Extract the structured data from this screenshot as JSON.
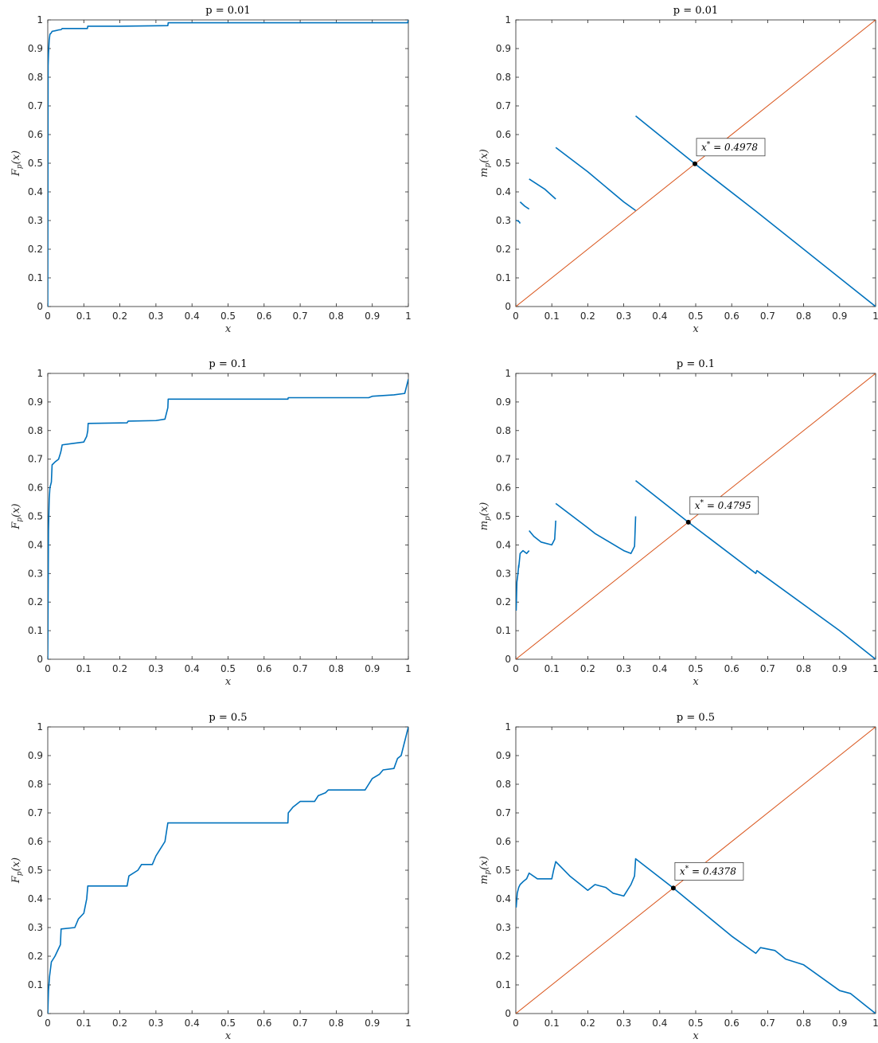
{
  "colors": {
    "cdf": "#0072BD",
    "map": "#0072BD",
    "diagonal": "#D95319",
    "point": "#000000",
    "axis": "#262626"
  },
  "chart_data": [
    {
      "type": "line",
      "panel": "cdf-p001",
      "title": "p = 0.01",
      "xlabel": "x",
      "ylabel": "F_p(x)",
      "xlim": [
        0,
        1
      ],
      "ylim": [
        0,
        1
      ],
      "xticks": [
        "0",
        "0.1",
        "0.2",
        "0.3",
        "0.4",
        "0.5",
        "0.6",
        "0.7",
        "0.8",
        "0.9",
        "1"
      ],
      "yticks": [
        "0",
        "0.1",
        "0.2",
        "0.3",
        "0.4",
        "0.5",
        "0.6",
        "0.7",
        "0.8",
        "0.9",
        "1"
      ],
      "grid": false,
      "series": [
        {
          "color": "cdf",
          "x": [
            0,
            0.001,
            0.002,
            0.004,
            0.006,
            0.01,
            0.012,
            0.02,
            0.03,
            0.037,
            0.04,
            0.11,
            0.111,
            0.2,
            0.333,
            0.334,
            0.6,
            0.95,
            0.998,
            1.0
          ],
          "y": [
            0,
            0.84,
            0.88,
            0.93,
            0.95,
            0.955,
            0.96,
            0.962,
            0.965,
            0.966,
            0.97,
            0.97,
            0.978,
            0.978,
            0.98,
            0.99,
            0.99,
            0.99,
            0.99,
            1.0
          ]
        }
      ]
    },
    {
      "type": "line",
      "panel": "map-p001",
      "title": "p = 0.01",
      "xlabel": "x",
      "ylabel": "m_p(x)",
      "xlim": [
        0,
        1
      ],
      "ylim": [
        0,
        1
      ],
      "xticks": [
        "0",
        "0.1",
        "0.2",
        "0.3",
        "0.4",
        "0.5",
        "0.6",
        "0.7",
        "0.8",
        "0.9",
        "1"
      ],
      "yticks": [
        "0",
        "0.1",
        "0.2",
        "0.3",
        "0.4",
        "0.5",
        "0.6",
        "0.7",
        "0.8",
        "0.9",
        "1"
      ],
      "grid": false,
      "series": [
        {
          "color": "diagonal",
          "x": [
            0,
            1
          ],
          "y": [
            0,
            1
          ]
        },
        {
          "color": "map",
          "x": [
            0.001,
            0.004,
            0.01,
            0.012
          ],
          "y": [
            0.3,
            0.3,
            0.295,
            0.29
          ]
        },
        {
          "color": "map",
          "x": [
            0.012,
            0.025,
            0.037
          ],
          "y": [
            0.365,
            0.35,
            0.34
          ]
        },
        {
          "color": "map",
          "x": [
            0.037,
            0.08,
            0.111
          ],
          "y": [
            0.445,
            0.41,
            0.375
          ]
        },
        {
          "color": "map",
          "x": [
            0.111,
            0.2,
            0.3,
            0.333
          ],
          "y": [
            0.555,
            0.47,
            0.365,
            0.335
          ]
        },
        {
          "color": "map",
          "x": [
            0.333,
            0.4978,
            0.667,
            1.0
          ],
          "y": [
            0.665,
            0.4978,
            0.333,
            0.0
          ]
        }
      ],
      "points": [
        {
          "x": 0.4978,
          "y": 0.4978
        }
      ],
      "annotation": {
        "text": "x* = 0.4978",
        "x": 0.4978,
        "y": 0.4978
      }
    },
    {
      "type": "line",
      "panel": "cdf-p01",
      "title": "p = 0.1",
      "xlabel": "x",
      "ylabel": "F_p(x)",
      "xlim": [
        0,
        1
      ],
      "ylim": [
        0,
        1
      ],
      "xticks": [
        "0",
        "0.1",
        "0.2",
        "0.3",
        "0.4",
        "0.5",
        "0.6",
        "0.7",
        "0.8",
        "0.9",
        "1"
      ],
      "yticks": [
        "0",
        "0.1",
        "0.2",
        "0.3",
        "0.4",
        "0.5",
        "0.6",
        "0.7",
        "0.8",
        "0.9",
        "1"
      ],
      "grid": false,
      "series": [
        {
          "color": "cdf",
          "x": [
            0,
            0.001,
            0.002,
            0.004,
            0.006,
            0.01,
            0.012,
            0.02,
            0.03,
            0.035,
            0.037,
            0.04,
            0.07,
            0.1,
            0.108,
            0.111,
            0.112,
            0.22,
            0.223,
            0.3,
            0.325,
            0.333,
            0.334,
            0.666,
            0.667,
            0.89,
            0.9,
            0.96,
            0.99,
            1.0
          ],
          "y": [
            0,
            0.22,
            0.45,
            0.56,
            0.6,
            0.62,
            0.68,
            0.69,
            0.7,
            0.72,
            0.73,
            0.75,
            0.755,
            0.76,
            0.78,
            0.8,
            0.825,
            0.827,
            0.833,
            0.835,
            0.84,
            0.88,
            0.91,
            0.91,
            0.915,
            0.915,
            0.92,
            0.925,
            0.93,
            0.98
          ]
        }
      ]
    },
    {
      "type": "line",
      "panel": "map-p01",
      "title": "p = 0.1",
      "xlabel": "x",
      "ylabel": "m_p(x)",
      "xlim": [
        0,
        1
      ],
      "ylim": [
        0,
        1
      ],
      "xticks": [
        "0",
        "0.1",
        "0.2",
        "0.3",
        "0.4",
        "0.5",
        "0.6",
        "0.7",
        "0.8",
        "0.9",
        "1"
      ],
      "yticks": [
        "0",
        "0.1",
        "0.2",
        "0.3",
        "0.4",
        "0.5",
        "0.6",
        "0.7",
        "0.8",
        "0.9",
        "1"
      ],
      "grid": false,
      "series": [
        {
          "color": "diagonal",
          "x": [
            0,
            1
          ],
          "y": [
            0,
            1
          ]
        },
        {
          "color": "map",
          "x": [
            0.001,
            0.003,
            0.006,
            0.008
          ],
          "y": [
            0.17,
            0.27,
            0.3,
            0.33
          ]
        },
        {
          "color": "map",
          "x": [
            0.008,
            0.012,
            0.02,
            0.03,
            0.037
          ],
          "y": [
            0.32,
            0.37,
            0.38,
            0.37,
            0.38
          ]
        },
        {
          "color": "map",
          "x": [
            0.037,
            0.05,
            0.07,
            0.1,
            0.108,
            0.111
          ],
          "y": [
            0.45,
            0.43,
            0.41,
            0.4,
            0.42,
            0.485
          ]
        },
        {
          "color": "map",
          "x": [
            0.111,
            0.2,
            0.22,
            0.3,
            0.32,
            0.33,
            0.333
          ],
          "y": [
            0.545,
            0.46,
            0.44,
            0.38,
            0.37,
            0.395,
            0.5
          ]
        },
        {
          "color": "map",
          "x": [
            0.333,
            0.4795,
            0.667,
            0.67,
            0.9,
            1.0
          ],
          "y": [
            0.625,
            0.4795,
            0.3,
            0.31,
            0.1,
            0.0
          ]
        }
      ],
      "points": [
        {
          "x": 0.4795,
          "y": 0.4795
        }
      ],
      "annotation": {
        "text": "x* = 0.4795",
        "x": 0.4795,
        "y": 0.4795
      }
    },
    {
      "type": "line",
      "panel": "cdf-p05",
      "title": "p = 0.5",
      "xlabel": "x",
      "ylabel": "F_p(x)",
      "xlim": [
        0,
        1
      ],
      "ylim": [
        0,
        1
      ],
      "xticks": [
        "0",
        "0.1",
        "0.2",
        "0.3",
        "0.4",
        "0.5",
        "0.6",
        "0.7",
        "0.8",
        "0.9",
        "1"
      ],
      "yticks": [
        "0",
        "0.1",
        "0.2",
        "0.3",
        "0.4",
        "0.5",
        "0.6",
        "0.7",
        "0.8",
        "0.9",
        "1"
      ],
      "grid": false,
      "series": [
        {
          "color": "cdf",
          "x": [
            0,
            0.002,
            0.005,
            0.01,
            0.02,
            0.035,
            0.037,
            0.075,
            0.085,
            0.1,
            0.108,
            0.111,
            0.22,
            0.225,
            0.25,
            0.26,
            0.29,
            0.3,
            0.31,
            0.325,
            0.333,
            0.666,
            0.667,
            0.68,
            0.7,
            0.74,
            0.75,
            0.77,
            0.778,
            0.88,
            0.89,
            0.9,
            0.92,
            0.93,
            0.96,
            0.97,
            0.98,
            0.99,
            1.0
          ],
          "y": [
            0,
            0.08,
            0.13,
            0.18,
            0.2,
            0.24,
            0.295,
            0.3,
            0.33,
            0.35,
            0.4,
            0.445,
            0.445,
            0.48,
            0.5,
            0.52,
            0.52,
            0.55,
            0.57,
            0.6,
            0.665,
            0.665,
            0.7,
            0.72,
            0.74,
            0.74,
            0.76,
            0.77,
            0.78,
            0.78,
            0.8,
            0.82,
            0.835,
            0.85,
            0.855,
            0.89,
            0.9,
            0.95,
            1.0
          ]
        }
      ]
    },
    {
      "type": "line",
      "panel": "map-p05",
      "title": "p = 0.5",
      "xlabel": "x",
      "ylabel": "m_p(x)",
      "xlim": [
        0,
        1
      ],
      "ylim": [
        0,
        1
      ],
      "xticks": [
        "0",
        "0.1",
        "0.2",
        "0.3",
        "0.4",
        "0.5",
        "0.6",
        "0.7",
        "0.8",
        "0.9",
        "1"
      ],
      "yticks": [
        "0",
        "0.1",
        "0.2",
        "0.3",
        "0.4",
        "0.5",
        "0.6",
        "0.7",
        "0.8",
        "0.9",
        "1"
      ],
      "grid": false,
      "series": [
        {
          "color": "diagonal",
          "x": [
            0,
            1
          ],
          "y": [
            0,
            1
          ]
        },
        {
          "color": "map",
          "x": [
            0.001,
            0.004,
            0.008,
            0.012,
            0.02,
            0.03,
            0.037,
            0.06,
            0.08,
            0.1,
            0.105,
            0.111,
            0.15,
            0.2,
            0.22,
            0.25,
            0.27,
            0.3,
            0.32,
            0.33,
            0.333,
            0.4378,
            0.6,
            0.667,
            0.68,
            0.72,
            0.75,
            0.8,
            0.9,
            0.93,
            0.97,
            1.0
          ],
          "y": [
            0.37,
            0.42,
            0.44,
            0.45,
            0.46,
            0.47,
            0.49,
            0.47,
            0.47,
            0.47,
            0.5,
            0.53,
            0.48,
            0.43,
            0.45,
            0.44,
            0.42,
            0.41,
            0.45,
            0.48,
            0.54,
            0.4378,
            0.27,
            0.21,
            0.23,
            0.22,
            0.19,
            0.17,
            0.08,
            0.07,
            0.03,
            0.0
          ]
        }
      ],
      "points": [
        {
          "x": 0.4378,
          "y": 0.4378
        }
      ],
      "annotation": {
        "text": "x* = 0.4378",
        "x": 0.4378,
        "y": 0.4378
      }
    }
  ]
}
